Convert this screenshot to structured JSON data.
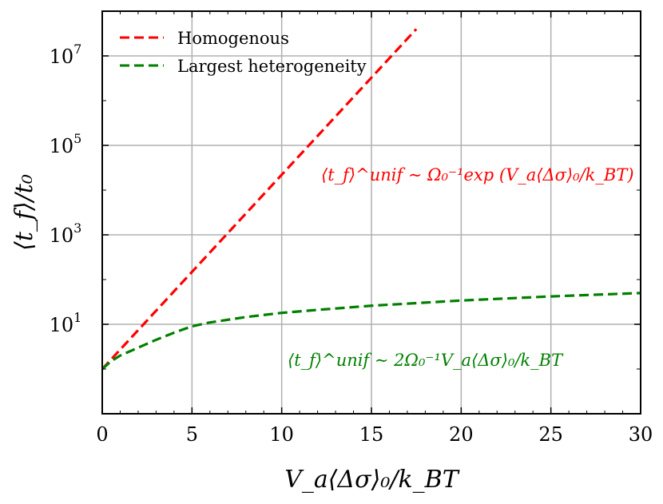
{
  "chart_data": {
    "type": "line",
    "xlabel": "V_a⟨Δσ⟩₀/k_BT",
    "ylabel": "⟨t_f⟩/t₀",
    "x_ticks": [
      "0",
      "5",
      "10",
      "15",
      "20",
      "25",
      "30"
    ],
    "y_ticks": [
      {
        "base": "10",
        "exp": "1"
      },
      {
        "base": "10",
        "exp": "3"
      },
      {
        "base": "10",
        "exp": "5"
      },
      {
        "base": "10",
        "exp": "7"
      }
    ],
    "xlim": [
      0,
      30
    ],
    "ylim": [
      0.1,
      100000000
    ],
    "yscale": "log",
    "grid": true,
    "legend_position": "top-left",
    "series": [
      {
        "name": "Homogenous",
        "color": "#ff0000",
        "style": "dashed",
        "x": [
          0,
          17.5
        ],
        "y": [
          1,
          39810717
        ]
      },
      {
        "name": "Largest heterogeneity",
        "color": "#008000",
        "style": "dashed",
        "x": [
          0,
          0.5,
          1,
          2,
          3,
          4,
          5,
          6,
          8,
          10,
          12,
          15,
          20,
          25,
          30
        ],
        "y": [
          1,
          1.5,
          2.0,
          3.0,
          4.5,
          6.5,
          9.0,
          11,
          14.5,
          18,
          21,
          26,
          34,
          42,
          50
        ]
      }
    ],
    "annotations": [
      {
        "text": "⟨t_f⟩^unif ∼ Ω₀⁻¹exp (V_a⟨Δσ⟩₀/k_BT)",
        "color": "#ff0000"
      },
      {
        "text": "⟨t_f⟩^unif ∼ 2Ω₀⁻¹V_a⟨Δσ⟩₀/k_BT",
        "color": "#008000"
      }
    ]
  }
}
